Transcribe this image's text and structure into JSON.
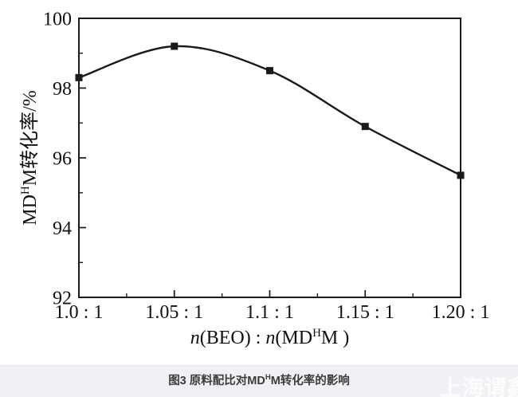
{
  "figure": {
    "caption": {
      "pre": "图3 原料配比对MD",
      "sup": "H",
      "post": "M转化率的影响"
    },
    "watermark_text": "上海谓鑫"
  },
  "chart_data": {
    "type": "line",
    "title": "",
    "series": [
      {
        "name": "MDHM转化率",
        "x": [
          1.0,
          1.05,
          1.1,
          1.15,
          1.2
        ],
        "values": [
          98.3,
          99.2,
          98.5,
          96.9,
          95.5
        ],
        "marker": "square",
        "color": "#1a1a1a"
      }
    ],
    "x_ticks": {
      "values": [
        1.0,
        1.05,
        1.1,
        1.15,
        1.2
      ],
      "labels": [
        "1.0 : 1",
        "1.05 : 1",
        "1.1 : 1",
        "1.15 : 1",
        "1.20 : 1"
      ],
      "minor_values": [
        1.025,
        1.075,
        1.125,
        1.175
      ]
    },
    "y_ticks": {
      "values": [
        92,
        94,
        96,
        98,
        100
      ],
      "labels": [
        "92",
        "94",
        "96",
        "98",
        "100"
      ],
      "minor_values": [
        93,
        95,
        97,
        99
      ]
    },
    "xlim": [
      1.0,
      1.2
    ],
    "ylim": [
      92,
      100
    ],
    "xlabel_parts": [
      {
        "t": "n",
        "italic": true
      },
      {
        "t": "(BEO) : "
      },
      {
        "t": "n",
        "italic": true
      },
      {
        "t": "(MD"
      },
      {
        "t": "H",
        "sup": true
      },
      {
        "t": "M )"
      }
    ],
    "ylabel_parts": [
      {
        "t": "MD"
      },
      {
        "t": "H",
        "sup": true
      },
      {
        "t": "M转化率/%"
      }
    ],
    "grid": false,
    "legend": null,
    "axis_color": "#1a1a1a",
    "text_color": "#111111"
  }
}
